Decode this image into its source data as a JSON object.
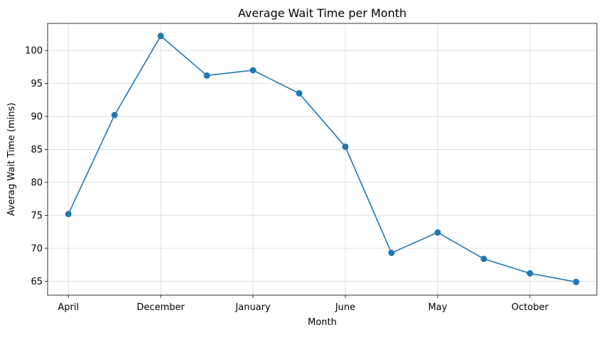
{
  "chart_data": {
    "type": "line",
    "title": "Average Wait Time per Month",
    "xlabel": "Month",
    "ylabel": "Averag Wait Time (mins)",
    "x_index": [
      0,
      1,
      2,
      3,
      4,
      5,
      6,
      7,
      8,
      9,
      10,
      11
    ],
    "values": [
      75.2,
      90.2,
      102.2,
      96.2,
      97.0,
      93.5,
      85.4,
      69.3,
      72.4,
      68.4,
      66.2,
      64.9
    ],
    "xticks": [
      {
        "index": 0,
        "label": "April"
      },
      {
        "index": 2,
        "label": "December"
      },
      {
        "index": 4,
        "label": "January"
      },
      {
        "index": 6,
        "label": "June"
      },
      {
        "index": 8,
        "label": "May"
      },
      {
        "index": 10,
        "label": "October"
      }
    ],
    "yticks": [
      65,
      70,
      75,
      80,
      85,
      90,
      95,
      100
    ],
    "xlim": [
      -0.45,
      11.45
    ],
    "ylim": [
      62.9,
      104.1
    ],
    "grid": true,
    "color": "#1f77b4",
    "marker": "circle"
  }
}
